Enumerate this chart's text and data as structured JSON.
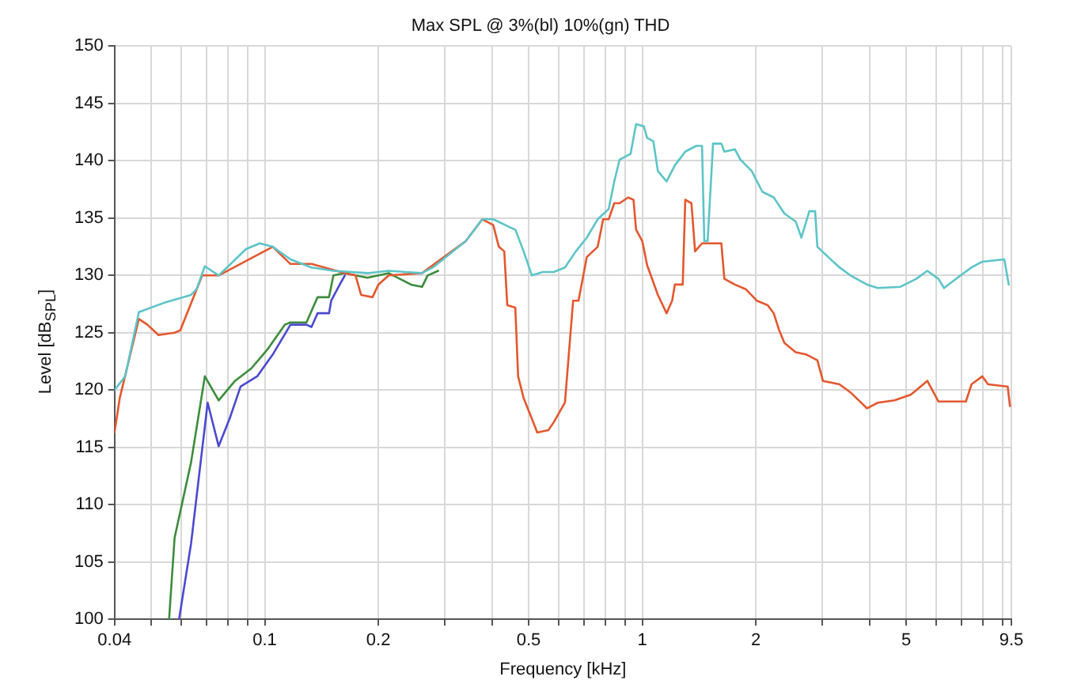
{
  "chart_data": {
    "type": "line",
    "title": "Max SPL @ 3%(bl) 10%(gn) THD",
    "xlabel": "Frequency [kHz]",
    "ylabel": "Level [dB$_{SPL}$]",
    "log": "x",
    "grid": true,
    "legend": false,
    "marker": "none",
    "line_style": "solid",
    "xlim": [
      0.04,
      9.5
    ],
    "ylim": [
      100,
      150
    ],
    "xticks": [
      0.04,
      {
        "value": 0.05,
        "label": null
      },
      {
        "value": 0.06,
        "label": null
      },
      {
        "value": 0.07,
        "label": null
      },
      {
        "value": 0.08,
        "label": null
      },
      {
        "value": 0.09,
        "label": null
      },
      0.1,
      0.2,
      {
        "value": 0.3,
        "label": null
      },
      {
        "value": 0.4,
        "label": null
      },
      0.5,
      {
        "value": 0.6,
        "label": null
      },
      {
        "value": 0.7,
        "label": null
      },
      {
        "value": 0.8,
        "label": null
      },
      {
        "value": 0.9,
        "label": null
      },
      1,
      2,
      {
        "value": 3,
        "label": null
      },
      {
        "value": 4,
        "label": null
      },
      5,
      {
        "value": 6,
        "label": null
      },
      {
        "value": 7,
        "label": null
      },
      {
        "value": 8,
        "label": null
      },
      {
        "value": 9,
        "label": null
      },
      9.5
    ],
    "yticks": [
      100,
      105,
      110,
      115,
      120,
      125,
      130,
      135,
      140,
      145,
      150
    ],
    "series": [
      {
        "color": "#5cc4c8",
        "x": [
          0.04,
          0.0427,
          0.0464,
          0.054,
          0.0638,
          0.066,
          0.0694,
          0.0755,
          0.0892,
          0.097,
          0.105,
          0.117,
          0.133,
          0.152,
          0.187,
          0.213,
          0.261,
          0.279,
          0.341,
          0.377,
          0.403,
          0.446,
          0.461,
          0.485,
          0.51,
          0.545,
          0.583,
          0.624,
          0.667,
          0.713,
          0.762,
          0.815,
          0.843,
          0.871,
          0.931,
          0.963,
          1.01,
          1.03,
          1.07,
          1.1,
          1.16,
          1.22,
          1.3,
          1.39,
          1.44,
          1.46,
          1.49,
          1.54,
          1.62,
          1.65,
          1.76,
          1.82,
          1.95,
          2.08,
          2.23,
          2.38,
          2.55,
          2.64,
          2.77,
          2.87,
          2.91,
          3.11,
          3.33,
          3.56,
          3.94,
          4.21,
          4.82,
          5.32,
          5.69,
          6.09,
          6.3,
          6.97,
          7.45,
          7.96,
          9.1,
          9.35
        ],
        "values": [
          120.0,
          121.2,
          126.8,
          127.6,
          128.3,
          128.8,
          130.8,
          130.0,
          132.3,
          132.8,
          132.5,
          131.4,
          130.7,
          130.4,
          130.2,
          130.4,
          130.2,
          130.7,
          133.0,
          134.9,
          134.9,
          134.2,
          134.0,
          132.1,
          130.0,
          130.3,
          130.3,
          130.7,
          132.1,
          133.3,
          134.9,
          135.8,
          138.2,
          140.1,
          140.6,
          143.2,
          143.0,
          142.0,
          141.7,
          139.1,
          138.2,
          139.6,
          140.8,
          141.3,
          141.3,
          133.0,
          133.0,
          141.5,
          141.5,
          140.8,
          141.0,
          140.1,
          139.1,
          137.3,
          136.8,
          135.4,
          134.7,
          133.3,
          135.6,
          135.6,
          132.5,
          131.6,
          130.7,
          130.0,
          129.2,
          128.9,
          129.0,
          129.7,
          130.4,
          129.7,
          128.9,
          130.0,
          130.7,
          131.2,
          131.4,
          129.2
        ]
      },
      {
        "color": "#e4572e",
        "x": [
          0.04,
          0.0413,
          0.0464,
          0.0489,
          0.0523,
          0.0577,
          0.0597,
          0.0683,
          0.0755,
          0.105,
          0.117,
          0.133,
          0.163,
          0.174,
          0.18,
          0.193,
          0.2,
          0.213,
          0.261,
          0.341,
          0.377,
          0.403,
          0.417,
          0.431,
          0.439,
          0.461,
          0.469,
          0.485,
          0.51,
          0.527,
          0.564,
          0.583,
          0.624,
          0.656,
          0.678,
          0.713,
          0.762,
          0.788,
          0.815,
          0.843,
          0.871,
          0.917,
          0.948,
          0.963,
          1.0,
          1.03,
          1.1,
          1.16,
          1.2,
          1.22,
          1.28,
          1.3,
          1.35,
          1.38,
          1.44,
          1.62,
          1.65,
          1.76,
          1.88,
          2.01,
          2.15,
          2.23,
          2.3,
          2.38,
          2.55,
          2.72,
          2.91,
          3.01,
          3.33,
          3.56,
          3.94,
          4.21,
          4.66,
          5.15,
          5.69,
          6.09,
          7.2,
          7.45,
          7.96,
          8.24,
          9.29,
          9.42
        ],
        "values": [
          116.3,
          119.3,
          126.2,
          125.7,
          124.8,
          125.0,
          125.2,
          130.0,
          130.0,
          132.5,
          131.0,
          131.0,
          130.2,
          130.0,
          128.3,
          128.1,
          129.2,
          130.0,
          130.2,
          133.0,
          134.9,
          134.4,
          132.5,
          132.1,
          127.4,
          127.2,
          121.2,
          119.3,
          117.5,
          116.3,
          116.5,
          117.2,
          118.9,
          127.8,
          127.8,
          131.6,
          132.5,
          134.9,
          134.9,
          136.3,
          136.3,
          136.8,
          136.6,
          134.0,
          133.0,
          130.9,
          128.3,
          126.7,
          127.8,
          129.2,
          129.2,
          136.6,
          136.3,
          132.1,
          132.8,
          132.8,
          129.7,
          129.2,
          128.8,
          127.8,
          127.4,
          126.7,
          125.3,
          124.1,
          123.3,
          123.1,
          122.6,
          120.8,
          120.5,
          119.8,
          118.4,
          118.9,
          119.1,
          119.6,
          120.8,
          119.0,
          119.0,
          120.5,
          121.2,
          120.5,
          120.3,
          118.6
        ]
      },
      {
        "color": "#3c8c3c",
        "x": [
          0.0558,
          0.0577,
          0.0638,
          0.0694,
          0.0755,
          0.0834,
          0.0922,
          0.102,
          0.113,
          0.117,
          0.129,
          0.133,
          0.138,
          0.148,
          0.152,
          0.163,
          0.187,
          0.213,
          0.244,
          0.261,
          0.27,
          0.288
        ],
        "values": [
          100.0,
          107.1,
          113.7,
          121.2,
          119.1,
          120.8,
          121.9,
          123.6,
          125.7,
          125.9,
          125.9,
          126.9,
          128.1,
          128.1,
          130.0,
          130.2,
          129.8,
          130.2,
          129.2,
          129.0,
          130.0,
          130.4
        ]
      },
      {
        "color": "#4a4ad0",
        "x": [
          0.0593,
          0.0638,
          0.0706,
          0.0755,
          0.0807,
          0.0863,
          0.0955,
          0.105,
          0.117,
          0.129,
          0.133,
          0.138,
          0.148,
          0.15,
          0.158,
          0.163
        ],
        "values": [
          100.0,
          106.6,
          118.9,
          115.1,
          117.5,
          120.3,
          121.2,
          123.1,
          125.7,
          125.7,
          125.5,
          126.7,
          126.7,
          127.8,
          129.2,
          130.0
        ]
      }
    ]
  }
}
